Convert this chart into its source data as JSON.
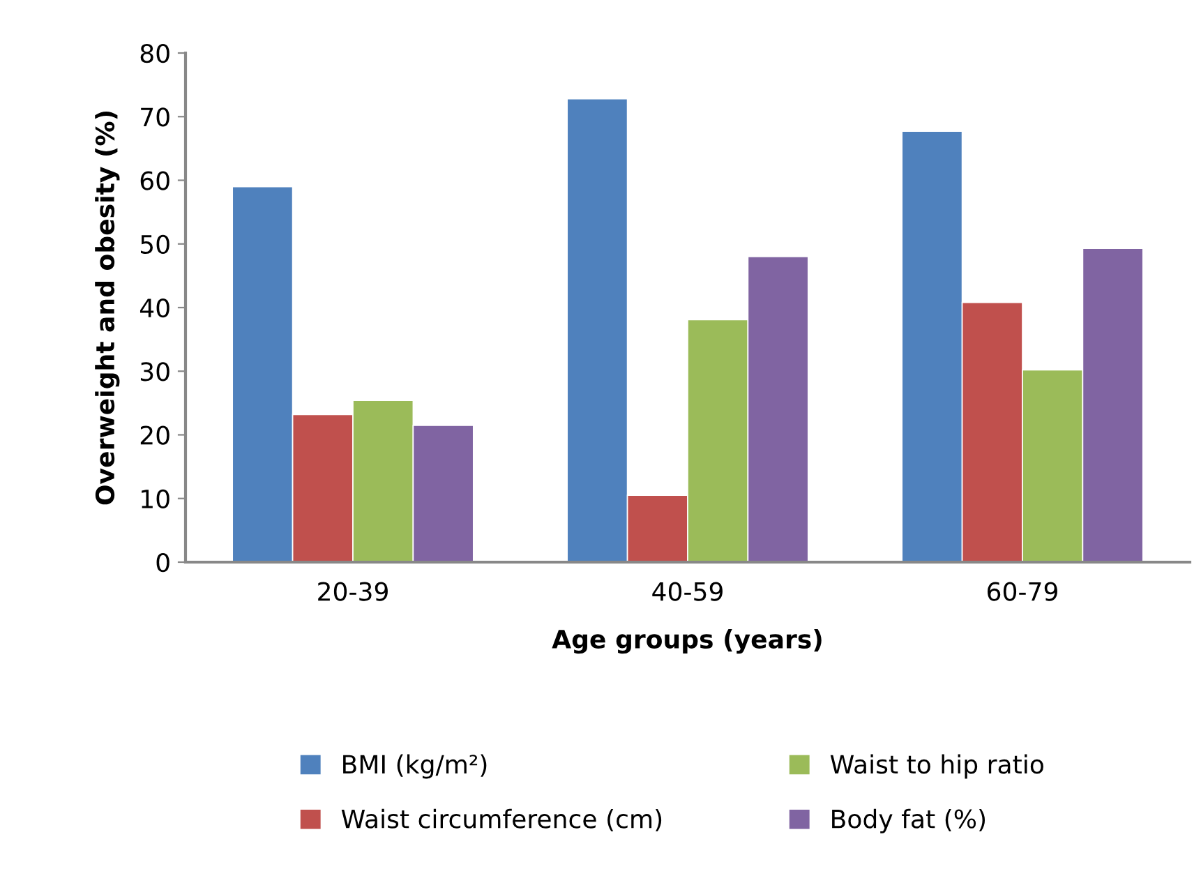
{
  "chart_data": {
    "type": "bar",
    "xlabel": "Age groups (years)",
    "ylabel": "Overweight and obesity (%)",
    "categories": [
      "20-39",
      "40-59",
      "60-79"
    ],
    "series": [
      {
        "name": "BMI (kg/m²)",
        "color": "#4f81bd",
        "values": [
          59,
          72.8,
          67.7
        ]
      },
      {
        "name": "Waist circumference (cm)",
        "color": "#c0504d",
        "values": [
          23.2,
          10.5,
          40.8
        ]
      },
      {
        "name": "Waist to hip ratio",
        "color": "#9bbb59",
        "values": [
          25.4,
          38.1,
          30.2
        ]
      },
      {
        "name": "Body fat (%)",
        "color": "#8064a2",
        "values": [
          21.5,
          48,
          49.3
        ]
      }
    ],
    "ylim": [
      0,
      80
    ],
    "yticks": [
      0,
      10,
      20,
      30,
      40,
      50,
      60,
      70,
      80
    ],
    "grid": false,
    "legend": "bottom"
  }
}
